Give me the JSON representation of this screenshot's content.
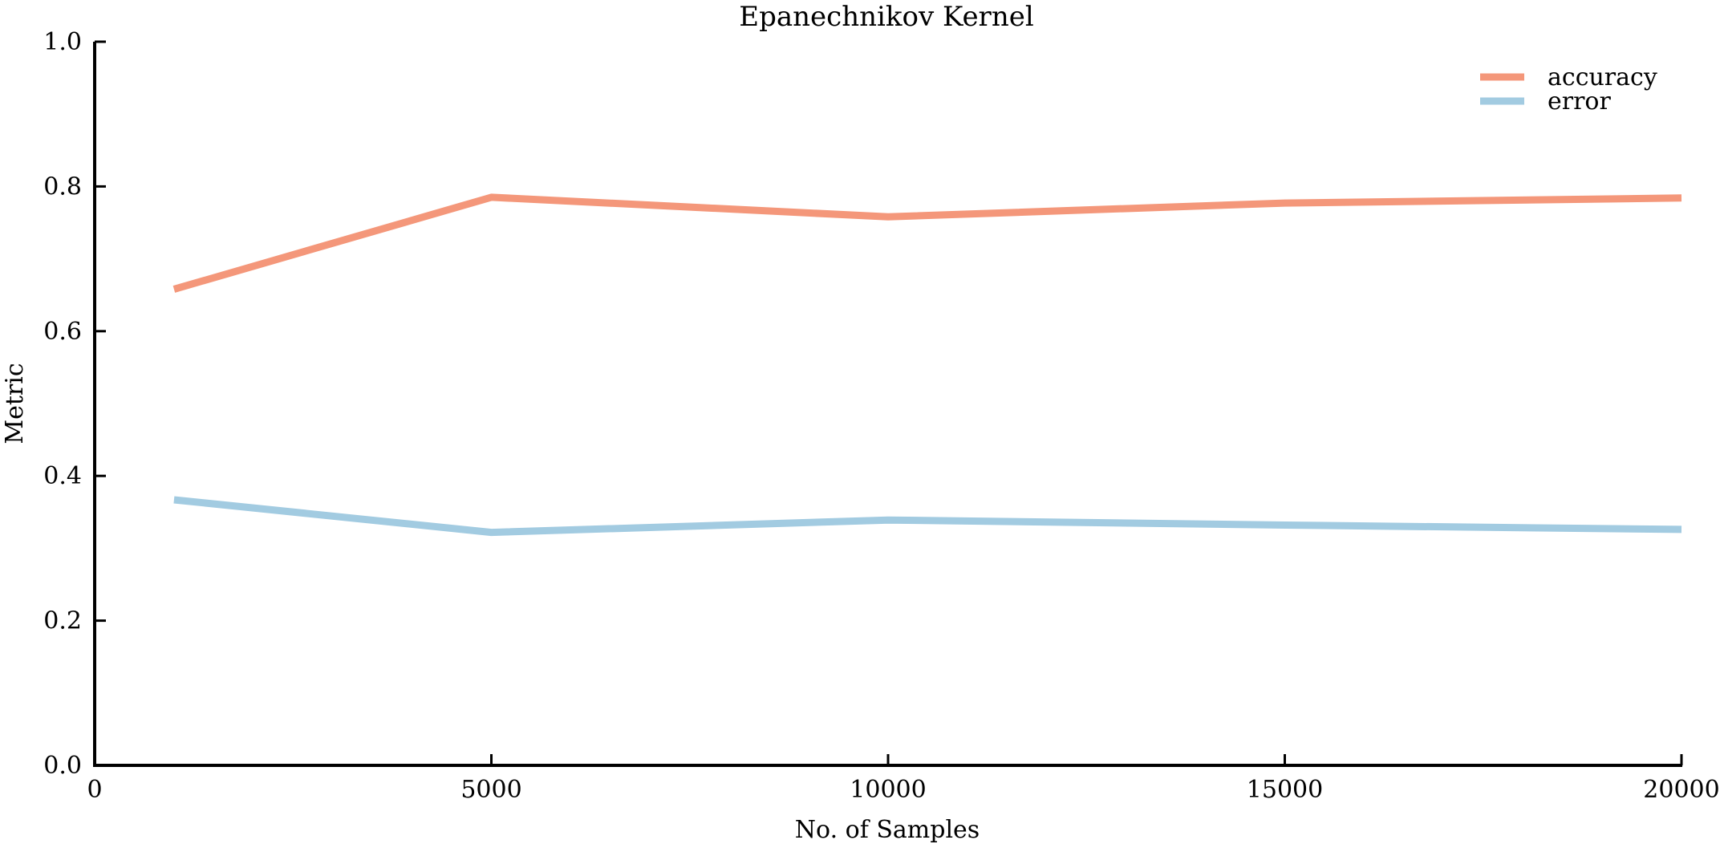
{
  "chart_data": {
    "type": "line",
    "title": "Epanechnikov Kernel",
    "xlabel": "No. of Samples",
    "ylabel": "Metric",
    "xlim": [
      0,
      20000
    ],
    "ylim": [
      0.0,
      1.0
    ],
    "xticks": [
      0,
      5000,
      10000,
      15000,
      20000
    ],
    "yticks": [
      0.0,
      0.2,
      0.4,
      0.6,
      0.8,
      1.0
    ],
    "xtick_labels": [
      "0",
      "5000",
      "10000",
      "15000",
      "20000"
    ],
    "ytick_labels": [
      "0.0",
      "0.2",
      "0.4",
      "0.6",
      "0.8",
      "1.0"
    ],
    "x": [
      1000,
      5000,
      10000,
      15000,
      20000
    ],
    "series": [
      {
        "name": "accuracy",
        "color": "#f4977a",
        "values": [
          0.658,
          0.785,
          0.758,
          0.777,
          0.784
        ]
      },
      {
        "name": "error",
        "color": "#a2cbe1",
        "values": [
          0.367,
          0.322,
          0.339,
          0.332,
          0.326
        ]
      }
    ],
    "legend": "top-right",
    "grid": false
  }
}
